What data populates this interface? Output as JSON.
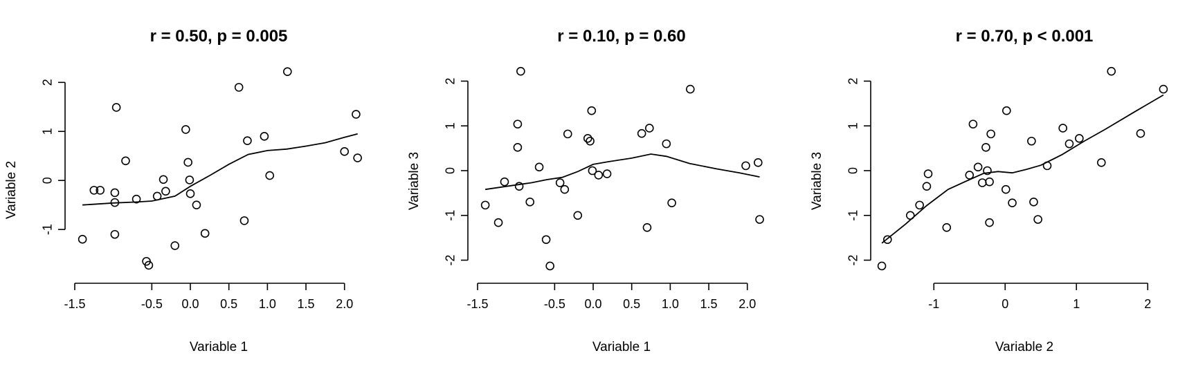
{
  "chart_data": [
    {
      "type": "scatter",
      "title": "r = 0.50, p = 0.005",
      "xlabel": "Variable 1",
      "ylabel": "Variable 2",
      "xlim": [
        -1.5,
        2.2
      ],
      "ylim": [
        -1.9,
        2.3
      ],
      "xticks": [
        -1.5,
        -0.5,
        0.0,
        0.5,
        1.0,
        1.5,
        2.0
      ],
      "xtick_labels": [
        "-1.5",
        "-0.5",
        "0.0",
        "0.5",
        "1.0",
        "1.5",
        "2.0"
      ],
      "yticks": [
        -1,
        0,
        1,
        2
      ],
      "ytick_labels": [
        "-1",
        "0",
        "1",
        "2"
      ],
      "grid": false,
      "points": [
        [
          -1.4,
          -1.2
        ],
        [
          -1.25,
          -0.2
        ],
        [
          -1.17,
          -0.2
        ],
        [
          -0.98,
          -0.25
        ],
        [
          -0.98,
          -0.45
        ],
        [
          -0.98,
          -1.1
        ],
        [
          -0.96,
          1.49
        ],
        [
          -0.84,
          0.4
        ],
        [
          -0.7,
          -0.38
        ],
        [
          -0.57,
          -1.65
        ],
        [
          -0.54,
          -1.73
        ],
        [
          -0.43,
          -0.32
        ],
        [
          -0.35,
          0.02
        ],
        [
          -0.32,
          -0.22
        ],
        [
          -0.2,
          -1.33
        ],
        [
          -0.06,
          1.04
        ],
        [
          -0.03,
          0.37
        ],
        [
          -0.01,
          0.01
        ],
        [
          0.0,
          -0.27
        ],
        [
          0.08,
          -0.5
        ],
        [
          0.19,
          -1.08
        ],
        [
          0.63,
          1.9
        ],
        [
          0.7,
          -0.82
        ],
        [
          0.74,
          0.81
        ],
        [
          0.96,
          0.9
        ],
        [
          1.03,
          0.1
        ],
        [
          1.26,
          2.22
        ],
        [
          2.0,
          0.59
        ],
        [
          2.15,
          1.35
        ],
        [
          2.17,
          0.46
        ]
      ],
      "smooth_line": [
        [
          -1.4,
          -0.5
        ],
        [
          -1.0,
          -0.46
        ],
        [
          -0.7,
          -0.44
        ],
        [
          -0.5,
          -0.42
        ],
        [
          -0.2,
          -0.32
        ],
        [
          0.0,
          -0.12
        ],
        [
          0.25,
          0.1
        ],
        [
          0.5,
          0.33
        ],
        [
          0.75,
          0.53
        ],
        [
          1.0,
          0.61
        ],
        [
          1.25,
          0.64
        ],
        [
          1.5,
          0.7
        ],
        [
          1.75,
          0.77
        ],
        [
          2.0,
          0.88
        ],
        [
          2.17,
          0.95
        ]
      ]
    },
    {
      "type": "scatter",
      "title": "r = 0.10, p = 0.60",
      "xlabel": "Variable 1",
      "ylabel": "Variable 3",
      "xlim": [
        -1.5,
        2.2
      ],
      "ylim": [
        -2.3,
        2.3
      ],
      "xticks": [
        -1.5,
        -0.5,
        0.0,
        0.5,
        1.0,
        1.5,
        2.0
      ],
      "xtick_labels": [
        "-1.5",
        "-0.5",
        "0.0",
        "0.5",
        "1.0",
        "1.5",
        "2.0"
      ],
      "yticks": [
        -2,
        -1,
        0,
        1,
        2
      ],
      "ytick_labels": [
        "-2",
        "-1",
        "0",
        "1",
        "2"
      ],
      "grid": false,
      "points": [
        [
          -1.4,
          -0.77
        ],
        [
          -1.23,
          -1.16
        ],
        [
          -1.15,
          -0.25
        ],
        [
          -0.98,
          1.04
        ],
        [
          -0.98,
          0.52
        ],
        [
          -0.96,
          -0.35
        ],
        [
          -0.94,
          2.22
        ],
        [
          -0.82,
          -0.7
        ],
        [
          -0.7,
          0.08
        ],
        [
          -0.61,
          -1.54
        ],
        [
          -0.56,
          -2.13
        ],
        [
          -0.43,
          -0.27
        ],
        [
          -0.37,
          -0.42
        ],
        [
          -0.33,
          0.82
        ],
        [
          -0.2,
          -1.0
        ],
        [
          -0.07,
          0.72
        ],
        [
          -0.04,
          0.66
        ],
        [
          -0.02,
          1.34
        ],
        [
          -0.01,
          0.0
        ],
        [
          0.07,
          -0.1
        ],
        [
          0.18,
          -0.07
        ],
        [
          0.63,
          0.83
        ],
        [
          0.7,
          -1.27
        ],
        [
          0.73,
          0.95
        ],
        [
          0.95,
          0.6
        ],
        [
          1.02,
          -0.72
        ],
        [
          1.26,
          1.82
        ],
        [
          1.98,
          0.11
        ],
        [
          2.14,
          0.18
        ],
        [
          2.16,
          -1.09
        ]
      ],
      "smooth_line": [
        [
          -1.4,
          -0.42
        ],
        [
          -1.0,
          -0.32
        ],
        [
          -0.8,
          -0.27
        ],
        [
          -0.6,
          -0.2
        ],
        [
          -0.4,
          -0.15
        ],
        [
          -0.2,
          -0.02
        ],
        [
          0.0,
          0.14
        ],
        [
          0.2,
          0.2
        ],
        [
          0.5,
          0.28
        ],
        [
          0.75,
          0.37
        ],
        [
          0.95,
          0.32
        ],
        [
          1.25,
          0.16
        ],
        [
          1.6,
          0.04
        ],
        [
          1.9,
          -0.05
        ],
        [
          2.16,
          -0.14
        ]
      ]
    },
    {
      "type": "scatter",
      "title": "r = 0.70, p < 0.001",
      "xlabel": "Variable 2",
      "ylabel": "Variable 3",
      "xlim": [
        -1.75,
        2.25
      ],
      "ylim": [
        -2.3,
        2.3
      ],
      "xticks": [
        -1,
        0,
        1,
        2
      ],
      "xtick_labels": [
        "-1",
        "0",
        "1",
        "2"
      ],
      "yticks": [
        -2,
        -1,
        0,
        1,
        2
      ],
      "ytick_labels": [
        "-2",
        "-1",
        "0",
        "1",
        "2"
      ],
      "grid": false,
      "points": [
        [
          -1.73,
          -2.13
        ],
        [
          -1.65,
          -1.54
        ],
        [
          -1.33,
          -1.0
        ],
        [
          -1.2,
          -0.77
        ],
        [
          -1.1,
          -0.35
        ],
        [
          -1.08,
          -0.07
        ],
        [
          -0.82,
          -1.27
        ],
        [
          -0.5,
          -0.1
        ],
        [
          -0.45,
          1.04
        ],
        [
          -0.38,
          0.08
        ],
        [
          -0.32,
          -0.27
        ],
        [
          -0.27,
          0.52
        ],
        [
          -0.25,
          0.0
        ],
        [
          -0.22,
          -0.25
        ],
        [
          -0.22,
          -1.16
        ],
        [
          -0.2,
          0.82
        ],
        [
          0.01,
          -0.42
        ],
        [
          0.02,
          1.34
        ],
        [
          0.1,
          -0.72
        ],
        [
          0.37,
          0.66
        ],
        [
          0.4,
          -0.7
        ],
        [
          0.46,
          -1.09
        ],
        [
          0.59,
          0.11
        ],
        [
          0.81,
          0.95
        ],
        [
          0.9,
          0.6
        ],
        [
          1.04,
          0.72
        ],
        [
          1.35,
          0.18
        ],
        [
          1.49,
          2.22
        ],
        [
          1.9,
          0.83
        ],
        [
          2.22,
          1.82
        ]
      ],
      "smooth_line": [
        [
          -1.73,
          -1.62
        ],
        [
          -1.4,
          -1.2
        ],
        [
          -1.1,
          -0.78
        ],
        [
          -0.8,
          -0.42
        ],
        [
          -0.5,
          -0.2
        ],
        [
          -0.3,
          -0.06
        ],
        [
          -0.1,
          -0.02
        ],
        [
          0.1,
          -0.05
        ],
        [
          0.3,
          0.03
        ],
        [
          0.5,
          0.12
        ],
        [
          0.8,
          0.36
        ],
        [
          1.1,
          0.65
        ],
        [
          1.4,
          0.92
        ],
        [
          1.8,
          1.3
        ],
        [
          2.22,
          1.69
        ]
      ]
    }
  ]
}
